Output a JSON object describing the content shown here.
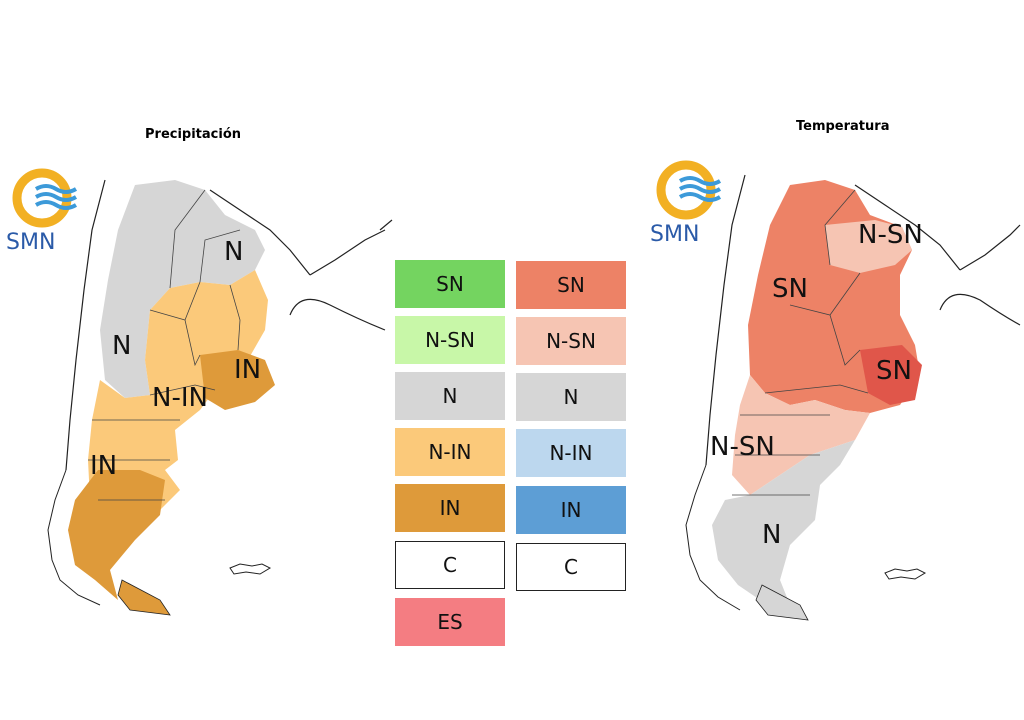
{
  "precip": {
    "title": "Precipitación",
    "logo_text": "SMN",
    "labels": [
      "N",
      "N",
      "IN",
      "N-IN",
      "IN"
    ]
  },
  "temp": {
    "title": "Temperatura",
    "logo_text": "SMN",
    "labels": [
      "N-SN",
      "SN",
      "SN",
      "N-SN",
      "N"
    ]
  },
  "legend_precip": [
    {
      "label": "SN",
      "color": "#74d460"
    },
    {
      "label": "N-SN",
      "color": "#c8f7a8"
    },
    {
      "label": "N",
      "color": "#d6d6d6"
    },
    {
      "label": "N-IN",
      "color": "#fbc97a"
    },
    {
      "label": "IN",
      "color": "#de9a3a"
    },
    {
      "label": "C",
      "color": "#ffffff"
    },
    {
      "label": "ES",
      "color": "#f47d82"
    }
  ],
  "legend_temp": [
    {
      "label": "SN",
      "color": "#ed8266"
    },
    {
      "label": "N-SN",
      "color": "#f6c5b3"
    },
    {
      "label": "N",
      "color": "#d6d6d6"
    },
    {
      "label": "N-IN",
      "color": "#bcd7ee"
    },
    {
      "label": "IN",
      "color": "#5d9ed5"
    },
    {
      "label": "C",
      "color": "#ffffff"
    }
  ]
}
